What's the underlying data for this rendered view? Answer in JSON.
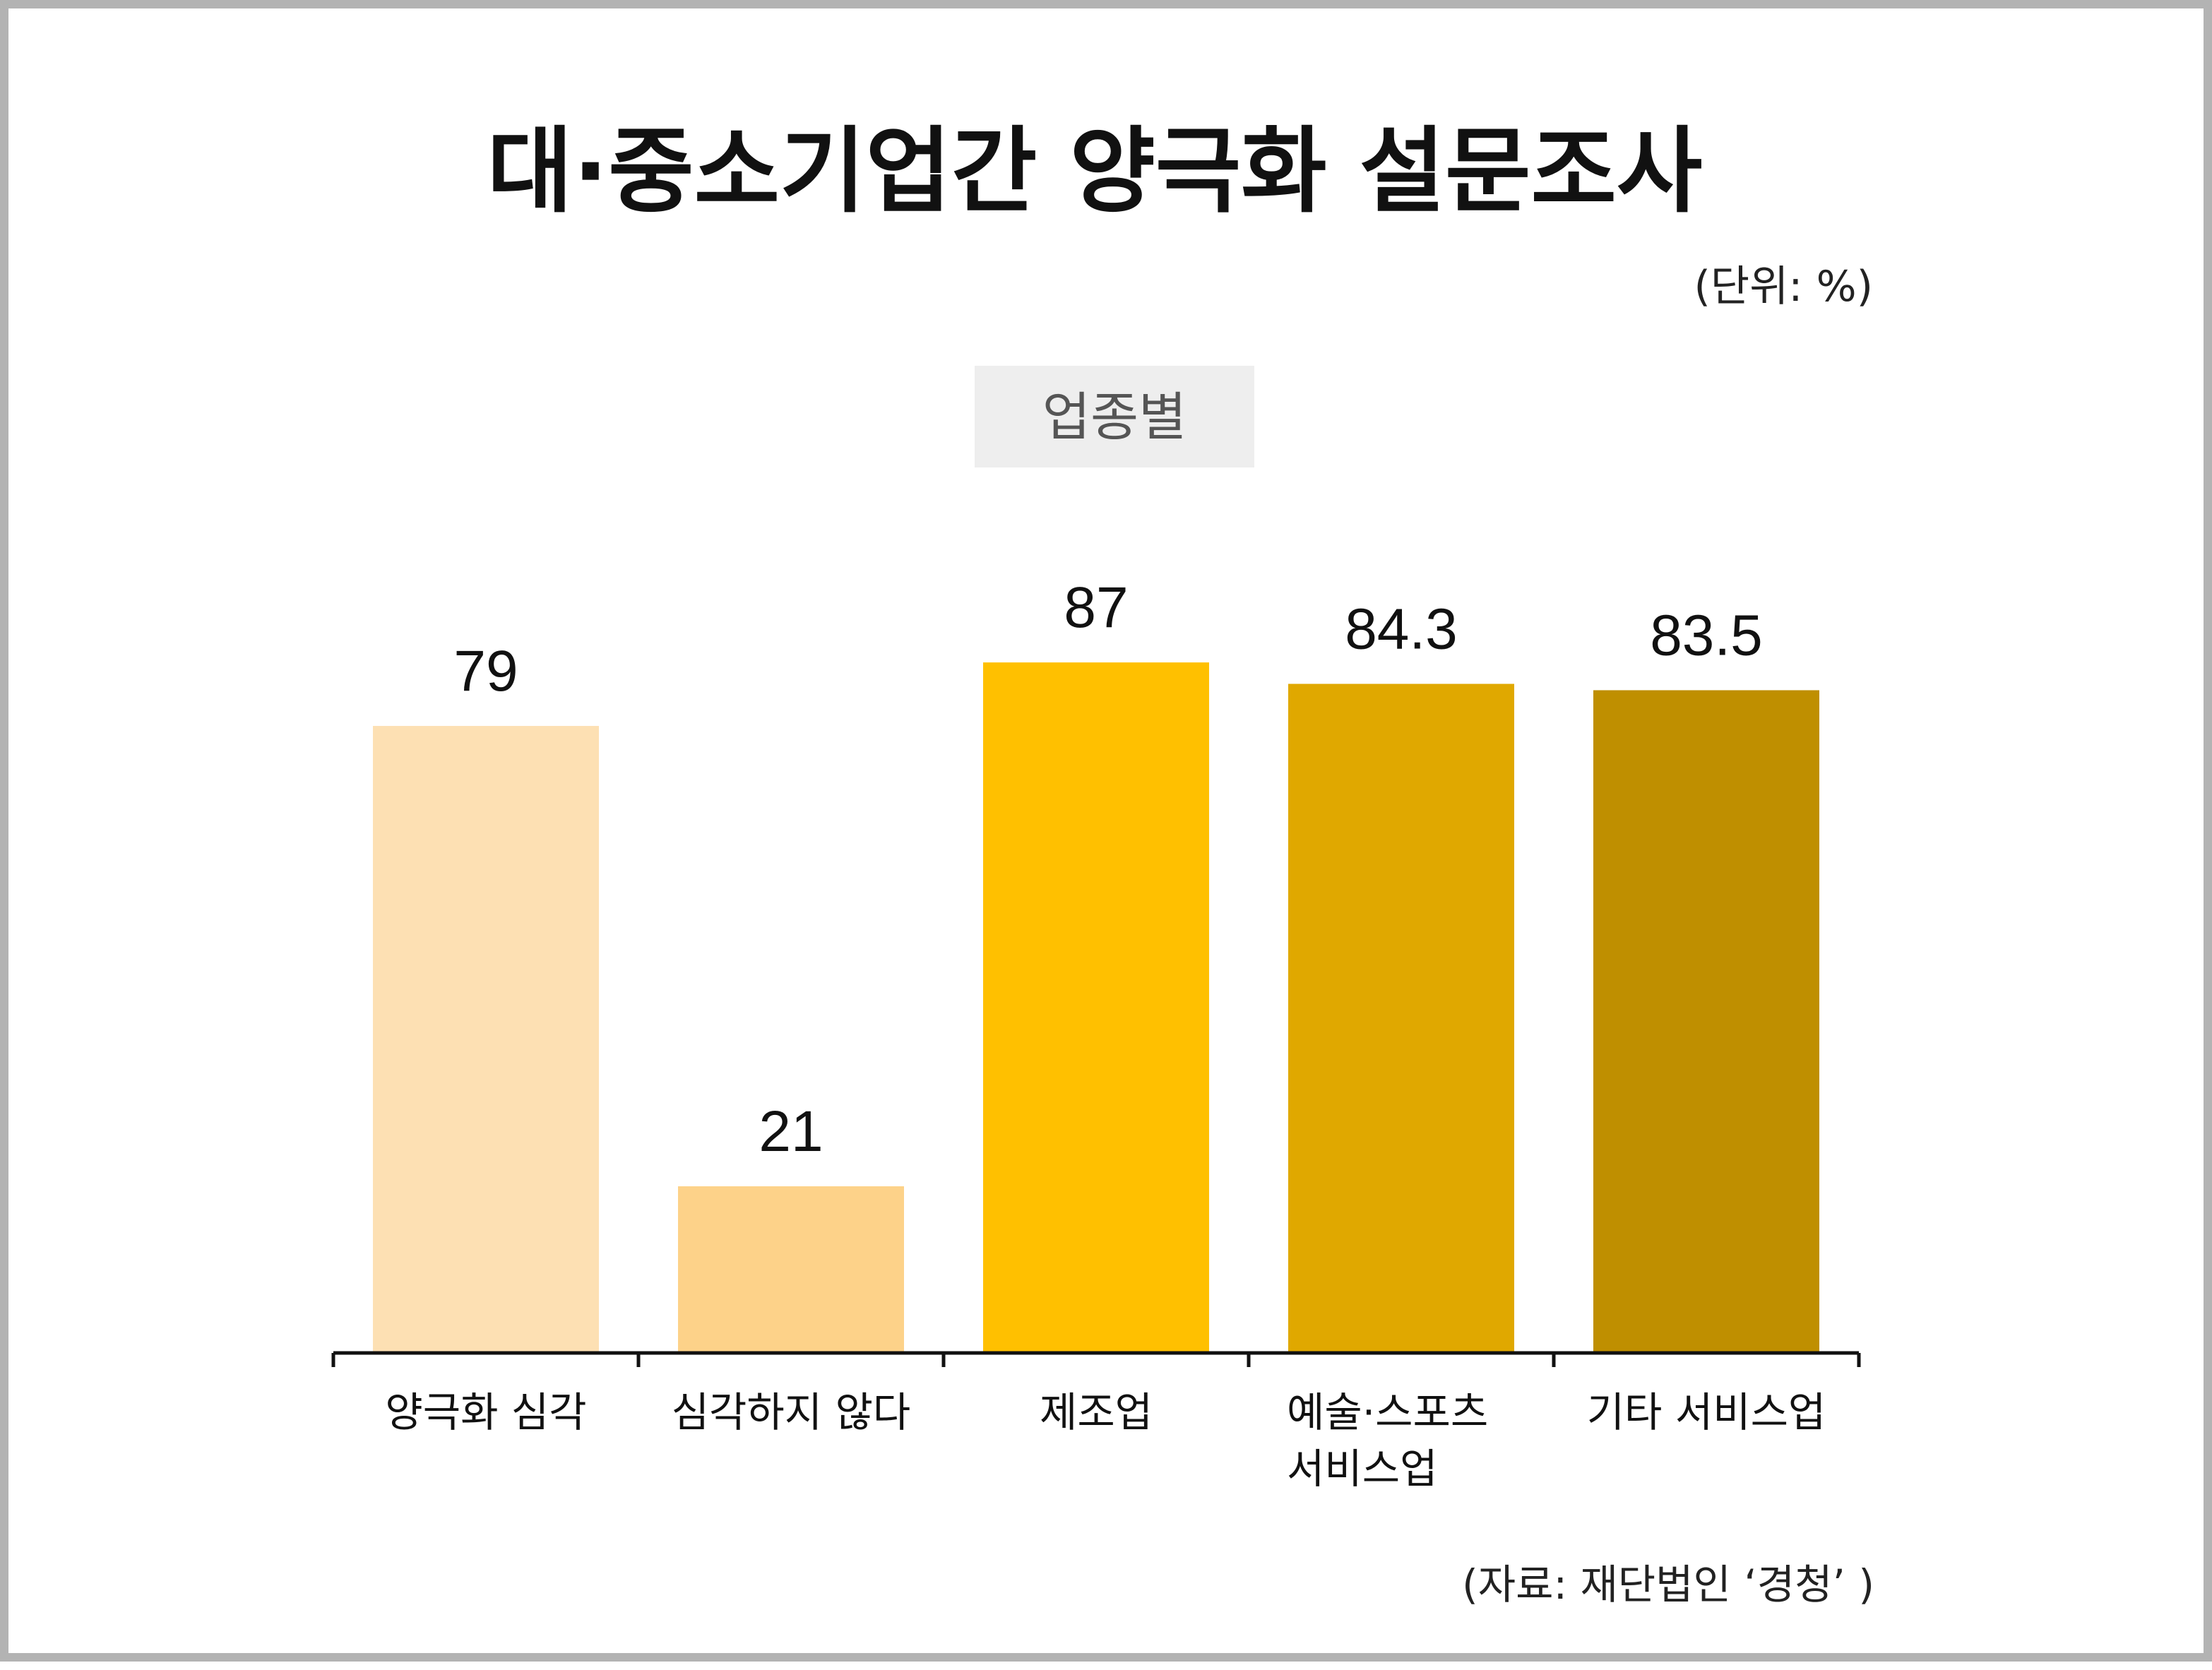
{
  "title": "대·중소기업간 양극화 설문조사",
  "unit": "(단위: %)",
  "source": "(자료: 재단법인 ‘경청’ )",
  "chart_data": {
    "type": "bar",
    "subtitle": "업종별",
    "categories": [
      [
        "양극화 심각"
      ],
      [
        "심각하지 않다"
      ],
      [
        "제조업"
      ],
      [
        "예술·스포츠",
        "서비스업"
      ],
      [
        "기타 서비스업"
      ]
    ],
    "values": [
      79,
      21,
      87,
      84.3,
      83.5
    ],
    "value_labels": [
      "79",
      "21",
      "87",
      "84.3",
      "83.5"
    ],
    "colors": [
      "#fde0b3",
      "#fdd289",
      "#ffc000",
      "#e0a800",
      "#bf8f00"
    ],
    "ylim": [
      0,
      100
    ],
    "grid": false,
    "legend": "none"
  }
}
